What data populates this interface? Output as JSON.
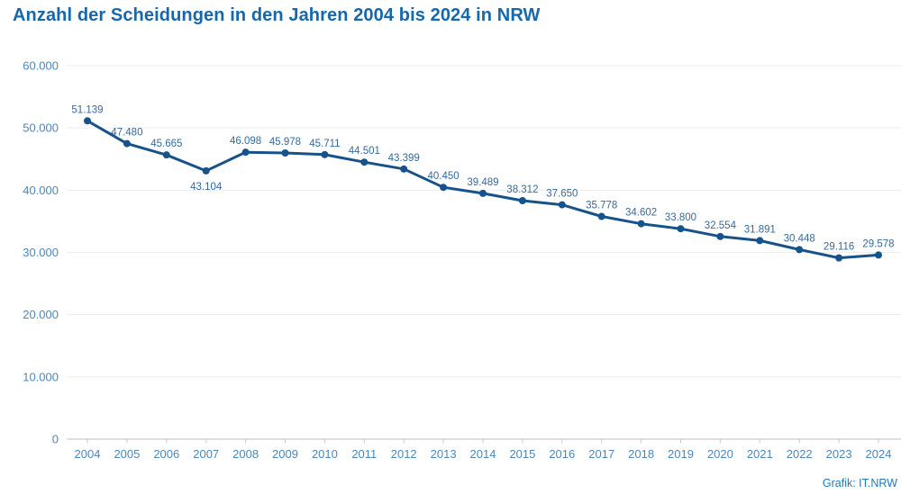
{
  "page": {
    "source": "Grafik: IT.NRW"
  },
  "chart_data": {
    "type": "line",
    "title": "Anzahl der Scheidungen in den Jahren 2004 bis 2024 in NRW",
    "xlabel": "",
    "ylabel": "",
    "legend_position": "none",
    "grid": true,
    "ylim": [
      0,
      60000
    ],
    "categories": [
      "2004",
      "2005",
      "2006",
      "2007",
      "2008",
      "2009",
      "2010",
      "2011",
      "2012",
      "2013",
      "2014",
      "2015",
      "2016",
      "2017",
      "2018",
      "2019",
      "2020",
      "2021",
      "2022",
      "2023",
      "2024"
    ],
    "values": [
      51139,
      47480,
      45665,
      43104,
      46098,
      45978,
      45711,
      44501,
      43399,
      40450,
      39489,
      38312,
      37650,
      35778,
      34602,
      33800,
      32554,
      31891,
      30448,
      29116,
      29578
    ],
    "point_labels": [
      "51.139",
      "47.480",
      "45.665",
      "43.104",
      "46.098",
      "45.978",
      "45.711",
      "44.501",
      "43.399",
      "40.450",
      "39.489",
      "38.312",
      "37.650",
      "35.778",
      "34.602",
      "33.800",
      "32.554",
      "31.891",
      "30.448",
      "29.116",
      "29.578"
    ],
    "labels_below_categories": [
      "2007"
    ],
    "yticks": [
      {
        "value": 60000,
        "label": "60.000"
      },
      {
        "value": 50000,
        "label": "50.000"
      },
      {
        "value": 40000,
        "label": "40.000"
      },
      {
        "value": 30000,
        "label": "30.000"
      },
      {
        "value": 20000,
        "label": "20.000"
      },
      {
        "value": 10000,
        "label": "10.000"
      },
      {
        "value": 0,
        "label": "0"
      }
    ],
    "colors": {
      "line": "#17528a",
      "marker": "#17528a",
      "title": "#1568ac",
      "data_label": "#35699c",
      "axis_label": "#4d87b8",
      "gridline": "#ececec",
      "axis_line": "#c9c9c9",
      "source": "#1e7ab8"
    }
  }
}
